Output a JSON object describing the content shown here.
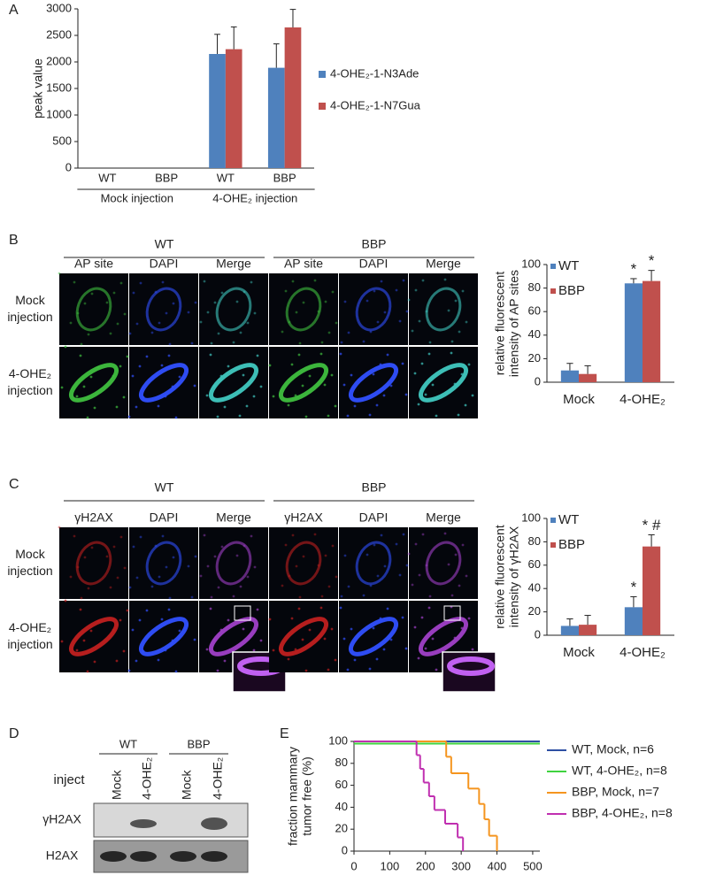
{
  "panel_labels": [
    "A",
    "B",
    "C",
    "D",
    "E"
  ],
  "chart_data": [
    {
      "type": "bar",
      "ylabel": [
        "peak value"
      ],
      "categories": [
        "WT",
        "BBP",
        "WT",
        "BBP"
      ],
      "groups": [
        "Mock injection",
        "4-OHE₂ injection"
      ],
      "series": [
        {
          "name": "4-OHE₂-1-N3Ade",
          "color": "#4f81bd",
          "values": [
            0,
            0,
            2150,
            1890
          ],
          "errors": [
            0,
            0,
            370,
            450
          ]
        },
        {
          "name": "4-OHE₂-1-N7Gua",
          "color": "#c0504d",
          "values": [
            0,
            0,
            2240,
            2650
          ],
          "errors": [
            0,
            0,
            420,
            340
          ]
        }
      ],
      "ylim": [
        0,
        3000
      ],
      "yticks": [
        0,
        500,
        1000,
        1500,
        2000,
        2500,
        3000
      ]
    },
    {
      "type": "bar",
      "ylabel": [
        "relative fluorescent",
        "intensity of AP sites"
      ],
      "categories": [
        "Mock",
        "4-OHE₂"
      ],
      "series": [
        {
          "name": "WT",
          "color": "#4f81bd",
          "values": [
            10,
            84
          ],
          "errors": [
            6,
            4
          ],
          "annotations": [
            null,
            "*"
          ]
        },
        {
          "name": "BBP",
          "color": "#c0504d",
          "values": [
            7,
            86
          ],
          "errors": [
            7,
            9
          ],
          "annotations": [
            null,
            "*"
          ]
        }
      ],
      "ylim": [
        0,
        100
      ],
      "yticks": [
        0,
        20,
        40,
        60,
        80,
        100
      ]
    },
    {
      "type": "bar",
      "ylabel": [
        "relative fluorescent",
        "intensity of γH2AX"
      ],
      "categories": [
        "Mock",
        "4-OHE₂"
      ],
      "series": [
        {
          "name": "WT",
          "color": "#4f81bd",
          "values": [
            8,
            24
          ],
          "errors": [
            6,
            9
          ],
          "annotations": [
            null,
            "*"
          ]
        },
        {
          "name": "BBP",
          "color": "#c0504d",
          "values": [
            9,
            76
          ],
          "errors": [
            8,
            10
          ],
          "annotations": [
            null,
            "* #"
          ]
        }
      ],
      "ylim": [
        0,
        100
      ],
      "yticks": [
        0,
        20,
        40,
        60,
        80,
        100
      ]
    },
    {
      "type": "line",
      "step": true,
      "ylabel": [
        "fraction mammary",
        "tumor free (%)"
      ],
      "series": [
        {
          "name": "WT, Mock, n=6",
          "color": "#2e4fa3",
          "x": [
            0,
            520
          ],
          "values": [
            100,
            100
          ]
        },
        {
          "name": "WT, 4-OHE₂, n=8",
          "color": "#3fd33f",
          "x": [
            0,
            520
          ],
          "values": [
            98,
            98
          ]
        },
        {
          "name": "BBP, Mock, n=7",
          "color": "#f5951f",
          "x": [
            0,
            258,
            272,
            320,
            350,
            365,
            378,
            400
          ],
          "values": [
            100,
            86,
            71,
            57,
            43,
            29,
            14,
            0
          ]
        },
        {
          "name": "BBP, 4-OHE₂, n=8",
          "color": "#c02fb0",
          "x": [
            0,
            175,
            185,
            195,
            210,
            225,
            255,
            290,
            305
          ],
          "values": [
            100,
            87.5,
            75,
            62.5,
            50,
            37.5,
            25,
            12.5,
            0
          ]
        }
      ],
      "xlim": [
        0,
        520
      ],
      "xticks": [
        0,
        100,
        200,
        300,
        400,
        500
      ],
      "ylim": [
        0,
        100
      ],
      "yticks": [
        0,
        20,
        40,
        60,
        80,
        100
      ]
    }
  ],
  "panel_b": {
    "headers": [
      "WT",
      "BBP"
    ],
    "columns": [
      "AP site",
      "DAPI",
      "Merge",
      "AP site",
      "DAPI",
      "Merge"
    ],
    "rows": [
      [
        "Mock",
        "injection"
      ],
      [
        "4-OHE₂",
        "injection"
      ]
    ]
  },
  "panel_c": {
    "headers": [
      "WT",
      "BBP"
    ],
    "columns": [
      "γH2AX",
      "DAPI",
      "Merge",
      "γH2AX",
      "DAPI",
      "Merge"
    ],
    "rows": [
      [
        "Mock",
        "injection"
      ],
      [
        "4-OHE₂",
        "injection"
      ]
    ]
  },
  "panel_d": {
    "headers": [
      "WT",
      "BBP"
    ],
    "row_title": "inject",
    "lanes": [
      "Mock",
      "4-OHE₂",
      "Mock",
      "4-OHE₂"
    ],
    "rows": [
      "γH2AX",
      "H2AX"
    ]
  }
}
